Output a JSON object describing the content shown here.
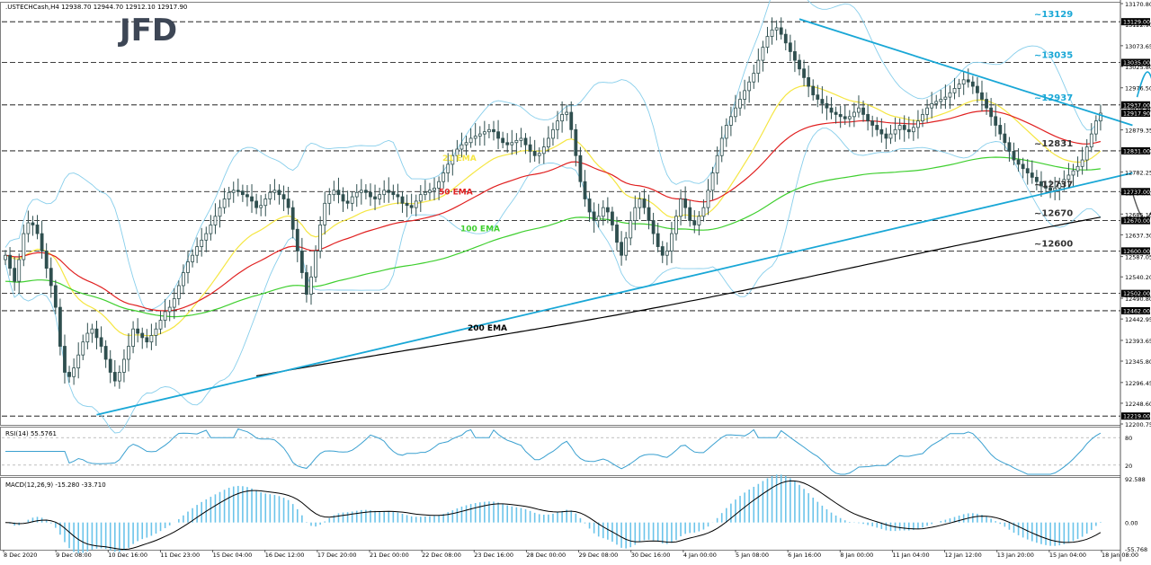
{
  "header": {
    "symbol_line": ".USTECHCash,H4  12938.70 12944.70 12912.10 12917.90",
    "logo_text": "JFD"
  },
  "colors": {
    "background": "#ffffff",
    "grid_line": "#000000",
    "panel_border": "#7f7f7f",
    "candle": "#2f4f4f",
    "bollinger": "#87ceeb",
    "ema21": "#f5e642",
    "ema50": "#e02020",
    "ema100": "#3fcf2f",
    "ema200": "#000000",
    "trendline": "#19a7d6",
    "level_label": "#19a7d6",
    "arrow": "#19a7d6",
    "arrow_down": "#555555",
    "rsi_line": "#3aa0d0",
    "macd_hist": "#6bc4ea",
    "macd_signal": "#000000",
    "price_tag_bg": "#000000",
    "price_tag_text": "#ffffff"
  },
  "chart_data": {
    "type": "candlestick",
    "title": ".USTECHCash,H4",
    "x_tick_labels": [
      "8 Dec 2020",
      "9 Dec 08:00",
      "10 Dec 16:00",
      "11 Dec 23:00",
      "15 Dec 04:00",
      "16 Dec 12:00",
      "17 Dec 20:00",
      "21 Dec 00:00",
      "22 Dec 08:00",
      "23 Dec 16:00",
      "28 Dec 00:00",
      "29 Dec 08:00",
      "30 Dec 16:00",
      "4 Jan 00:00",
      "5 Jan 08:00",
      "6 Jan 16:00",
      "8 Jan 00:00",
      "11 Jan 04:00",
      "12 Jan 12:00",
      "13 Jan 20:00",
      "15 Jan 04:00",
      "18 Jan 08:00"
    ],
    "y_axis_labels": [
      "13170.80",
      "13122.90",
      "13073.65",
      "13025.80",
      "12976.50",
      "12928.80",
      "12879.35",
      "12831.50",
      "12782.25",
      "12734.40",
      "12685.15",
      "12637.30",
      "12587.05",
      "12540.20",
      "12490.80",
      "12442.95",
      "12393.65",
      "12345.80",
      "12296.45",
      "12248.60",
      "12200.75"
    ],
    "ylim": [
      12200.75,
      13170.8
    ],
    "horizontal_levels": [
      13129,
      13035,
      12937,
      12831,
      12737,
      12670,
      12600,
      12502,
      12462,
      12219
    ],
    "price_tags": [
      "13129.00",
      "13035.00",
      "12937.00",
      "12917.90",
      "12831.00",
      "12737.00",
      "12670.00",
      "12600.00",
      "12502.00",
      "12462.00",
      "12219.00"
    ],
    "level_labels": [
      {
        "text": "~13129",
        "value": 13129
      },
      {
        "text": "~13035",
        "value": 13035
      },
      {
        "text": "~12937",
        "value": 12937
      },
      {
        "text": "~12831",
        "value": 12831
      },
      {
        "text": "~12737",
        "value": 12737
      },
      {
        "text": "~12670",
        "value": 12670
      },
      {
        "text": "~12600",
        "value": 12600
      }
    ],
    "ema_labels": [
      {
        "text": "21 EMA",
        "series": "ema21"
      },
      {
        "text": "50 EMA",
        "series": "ema50"
      },
      {
        "text": "100 EMA",
        "series": "ema100"
      },
      {
        "text": "200 EMA",
        "series": "ema200"
      }
    ],
    "trendlines": {
      "descending": {
        "from": {
          "bar": 174,
          "price": 13135
        },
        "to": {
          "bar": 247,
          "price": 12890
        }
      },
      "ascending": {
        "from": {
          "bar": 20,
          "price": 12222
        },
        "to": {
          "bar": 247,
          "price": 12780
        }
      }
    },
    "closes": [
      12590,
      12560,
      12530,
      12580,
      12640,
      12665,
      12660,
      12640,
      12600,
      12560,
      12520,
      12470,
      12380,
      12320,
      12310,
      12330,
      12360,
      12390,
      12410,
      12420,
      12400,
      12380,
      12350,
      12320,
      12300,
      12320,
      12350,
      12380,
      12420,
      12410,
      12400,
      12390,
      12405,
      12420,
      12440,
      12460,
      12470,
      12490,
      12520,
      12550,
      12575,
      12590,
      12610,
      12625,
      12640,
      12660,
      12680,
      12700,
      12720,
      12735,
      12740,
      12738,
      12730,
      12725,
      12715,
      12700,
      12705,
      12720,
      12735,
      12740,
      12730,
      12720,
      12700,
      12650,
      12600,
      12550,
      12500,
      12540,
      12600,
      12660,
      12710,
      12730,
      12740,
      12730,
      12715,
      12710,
      12725,
      12735,
      12740,
      12735,
      12725,
      12720,
      12730,
      12740,
      12735,
      12730,
      12725,
      12710,
      12705,
      12700,
      12715,
      12730,
      12735,
      12740,
      12745,
      12760,
      12780,
      12800,
      12820,
      12835,
      12845,
      12850,
      12860,
      12865,
      12870,
      12875,
      12880,
      12875,
      12860,
      12850,
      12845,
      12850,
      12855,
      12860,
      12845,
      12830,
      12820,
      12825,
      12840,
      12860,
      12880,
      12900,
      12915,
      12920,
      12880,
      12820,
      12760,
      12720,
      12690,
      12670,
      12680,
      12700,
      12690,
      12660,
      12620,
      12590,
      12630,
      12670,
      12700,
      12720,
      12700,
      12670,
      12640,
      12610,
      12590,
      12600,
      12640,
      12680,
      12720,
      12700,
      12670,
      12660,
      12680,
      12700,
      12740,
      12780,
      12820,
      12860,
      12890,
      12910,
      12930,
      12950,
      12970,
      12990,
      13010,
      13040,
      13070,
      13095,
      13110,
      13115,
      13100,
      13080,
      13060,
      13040,
      13020,
      13000,
      12980,
      12960,
      12950,
      12940,
      12930,
      12920,
      12915,
      12910,
      12905,
      12910,
      12920,
      12930,
      12915,
      12900,
      12890,
      12880,
      12870,
      12860,
      12870,
      12880,
      12890,
      12880,
      12875,
      12885,
      12900,
      12915,
      12930,
      12940,
      12945,
      12950,
      12955,
      12965,
      12975,
      12985,
      12995,
      12990,
      12980,
      12965,
      12950,
      12930,
      12910,
      12890,
      12870,
      12850,
      12830,
      12810,
      12800,
      12790,
      12780,
      12770,
      12760,
      12750,
      12745,
      12740,
      12745,
      12755,
      12765,
      12775,
      12785,
      12795,
      12810,
      12840,
      12870,
      12900,
      12918
    ],
    "indicators": {
      "rsi": {
        "label": "RSI(14) 55.5761",
        "levels": [
          80,
          20
        ],
        "ylim": [
          0,
          100
        ]
      },
      "macd": {
        "label": "MACD(12,26,9) -15.280 -33.710",
        "axis_labels": [
          "92.588",
          "0.00",
          "-55.768"
        ],
        "ylim": [
          -55.768,
          92.588
        ]
      }
    }
  }
}
